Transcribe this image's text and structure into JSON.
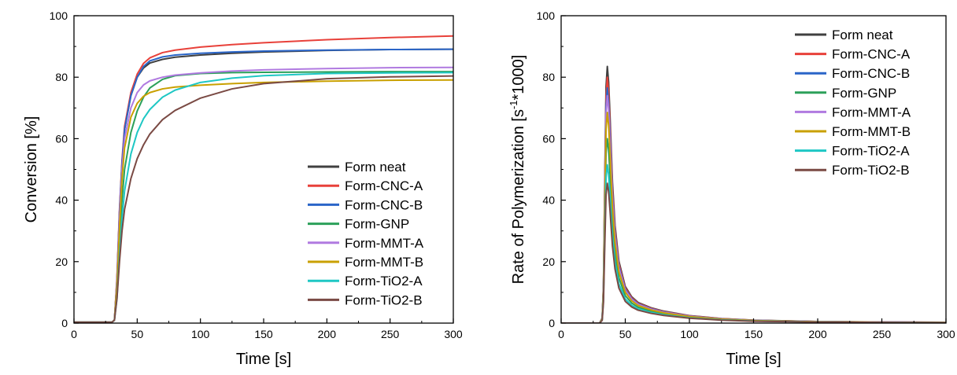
{
  "chart_data": [
    {
      "type": "line",
      "xlabel": "Time [s]",
      "ylabel": "Conversion [%]",
      "xlim": [
        0,
        300
      ],
      "ylim": [
        0,
        100
      ],
      "xticks": [
        "0",
        "50",
        "100",
        "150",
        "200",
        "250",
        "300"
      ],
      "yticks": [
        "0",
        "20",
        "40",
        "60",
        "80",
        "100"
      ],
      "grid": false,
      "legend_position": "bottom-right",
      "series": [
        {
          "name": "Form neat",
          "color": "#404040",
          "x": [
            0,
            30,
            32,
            34,
            36,
            38,
            40,
            45,
            50,
            55,
            60,
            70,
            80,
            100,
            125,
            150,
            200,
            250,
            300
          ],
          "y": [
            0.3,
            0.3,
            1,
            14,
            36,
            52,
            63,
            74,
            80,
            83,
            84.6,
            85.8,
            86.5,
            87.2,
            87.8,
            88.2,
            88.7,
            89,
            89.1
          ]
        },
        {
          "name": "Form-CNC-A",
          "color": "#e8413a",
          "x": [
            0,
            30,
            32,
            34,
            36,
            38,
            40,
            45,
            50,
            55,
            60,
            70,
            80,
            100,
            125,
            150,
            200,
            250,
            300
          ],
          "y": [
            0.3,
            0.3,
            1,
            15,
            37,
            53,
            64,
            75,
            81,
            84.5,
            86.3,
            88,
            88.8,
            89.8,
            90.6,
            91.2,
            92.2,
            92.9,
            93.4
          ]
        },
        {
          "name": "Form-CNC-B",
          "color": "#2a65c8",
          "x": [
            0,
            30,
            32,
            34,
            36,
            38,
            40,
            45,
            50,
            55,
            60,
            70,
            80,
            100,
            125,
            150,
            200,
            250,
            300
          ],
          "y": [
            0.3,
            0.3,
            1,
            14,
            36,
            52,
            63,
            74,
            80,
            83.5,
            85.3,
            86.6,
            87.2,
            87.8,
            88.2,
            88.5,
            88.8,
            89,
            89.1
          ]
        },
        {
          "name": "Form-GNP",
          "color": "#2ca05a",
          "x": [
            0,
            30,
            32,
            34,
            36,
            38,
            40,
            45,
            50,
            55,
            60,
            70,
            80,
            100,
            125,
            150,
            200,
            250,
            300
          ],
          "y": [
            0.3,
            0.3,
            1,
            10,
            27,
            40,
            50,
            62,
            69,
            73.5,
            76.5,
            79.3,
            80.5,
            81.2,
            81.5,
            81.6,
            81.7,
            81.8,
            81.8
          ]
        },
        {
          "name": "Form-MMT-A",
          "color": "#b07ae0",
          "x": [
            0,
            30,
            32,
            34,
            36,
            38,
            40,
            45,
            50,
            55,
            60,
            70,
            80,
            100,
            125,
            150,
            200,
            250,
            300
          ],
          "y": [
            0.3,
            0.3,
            1,
            13,
            34,
            50,
            60,
            70,
            75,
            77.5,
            78.8,
            80,
            80.7,
            81.4,
            82,
            82.4,
            82.8,
            83.1,
            83.2
          ]
        },
        {
          "name": "Form-MMT-B",
          "color": "#c9a000",
          "x": [
            0,
            30,
            32,
            34,
            36,
            38,
            40,
            45,
            50,
            55,
            60,
            70,
            80,
            100,
            125,
            150,
            200,
            250,
            300
          ],
          "y": [
            0.3,
            0.3,
            1,
            12,
            31,
            47,
            57,
            67,
            71.5,
            73.8,
            75,
            76.2,
            76.8,
            77.4,
            77.9,
            78.3,
            78.7,
            79,
            79.1
          ]
        },
        {
          "name": "Form-TiO2-A",
          "color": "#1ec7c4",
          "x": [
            0,
            30,
            32,
            34,
            36,
            38,
            40,
            45,
            50,
            55,
            60,
            70,
            80,
            100,
            125,
            150,
            200,
            250,
            300
          ],
          "y": [
            0.3,
            0.3,
            1,
            8,
            22,
            34,
            43,
            55,
            62,
            66.5,
            69.5,
            73.5,
            75.8,
            78.3,
            79.7,
            80.5,
            81.2,
            81.4,
            81.5
          ]
        },
        {
          "name": "Form-TiO2-B",
          "color": "#7a4a44",
          "x": [
            0,
            30,
            32,
            34,
            36,
            38,
            40,
            45,
            50,
            55,
            60,
            70,
            80,
            100,
            125,
            150,
            200,
            250,
            300
          ],
          "y": [
            0.3,
            0.3,
            1,
            8,
            20,
            30,
            37,
            47,
            53.5,
            58,
            61.5,
            66.2,
            69.2,
            73.2,
            76.2,
            77.9,
            79.5,
            80.1,
            80.4
          ]
        }
      ]
    },
    {
      "type": "line",
      "xlabel": "Time [s]",
      "ylabel_prefix": "Rate of Polymerization [s",
      "ylabel_superscript": "-1",
      "ylabel_suffix": "*1000]",
      "xlim": [
        0,
        300
      ],
      "ylim": [
        0,
        100
      ],
      "xticks": [
        "0",
        "50",
        "100",
        "150",
        "200",
        "250",
        "300"
      ],
      "yticks": [
        "0",
        "20",
        "40",
        "60",
        "80",
        "100"
      ],
      "grid": false,
      "legend_position": "top-right",
      "series": [
        {
          "name": "Form neat",
          "color": "#404040",
          "peak": 83.5
        },
        {
          "name": "Form-CNC-A",
          "color": "#e8413a",
          "peak": 80
        },
        {
          "name": "Form-CNC-B",
          "color": "#2a65c8",
          "peak": 76.5
        },
        {
          "name": "Form-GNP",
          "color": "#2ca05a",
          "peak": 60
        },
        {
          "name": "Form-MMT-A",
          "color": "#b07ae0",
          "peak": 74
        },
        {
          "name": "Form-MMT-B",
          "color": "#c9a000",
          "peak": 68.5
        },
        {
          "name": "Form-TiO2-A",
          "color": "#1ec7c4",
          "peak": 51.5
        },
        {
          "name": "Form-TiO2-B",
          "color": "#7a4a44",
          "peak": 45.5
        }
      ],
      "profile_x": [
        0,
        30,
        32,
        33,
        34,
        35,
        36,
        37,
        38,
        40,
        42,
        45,
        50,
        55,
        60,
        70,
        80,
        100,
        125,
        150,
        200,
        250,
        300
      ],
      "profile_shape": [
        0,
        0,
        0.02,
        0.15,
        0.55,
        0.92,
        1,
        0.94,
        0.82,
        0.55,
        0.38,
        0.24,
        0.14,
        0.1,
        0.078,
        0.058,
        0.045,
        0.028,
        0.017,
        0.011,
        0.006,
        0.004,
        0.003
      ],
      "tail_offset": [
        0,
        0,
        0,
        0,
        0,
        0,
        0,
        0,
        0,
        0,
        0.5,
        0.9,
        1.3,
        1.3,
        1.2,
        1,
        0.8,
        0.6,
        0.35,
        0.2,
        0.1,
        0.05,
        0.03
      ]
    }
  ]
}
